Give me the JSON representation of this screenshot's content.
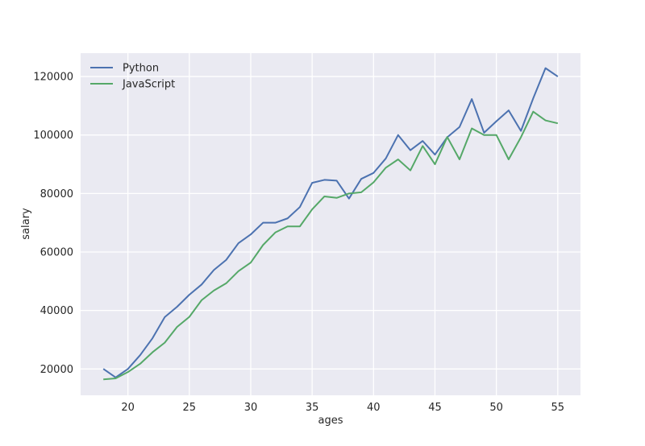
{
  "chart_data": {
    "type": "line",
    "title": "",
    "xlabel": "ages",
    "ylabel": "salary",
    "xlim": [
      16.15,
      56.85
    ],
    "ylim": [
      11000,
      128000
    ],
    "xticks": [
      20,
      25,
      30,
      35,
      40,
      45,
      50,
      55
    ],
    "yticks": [
      20000,
      40000,
      60000,
      80000,
      100000,
      120000
    ],
    "grid": true,
    "legend_position": "top-left",
    "x": [
      18,
      19,
      20,
      21,
      22,
      23,
      24,
      25,
      26,
      27,
      28,
      29,
      30,
      31,
      32,
      33,
      34,
      35,
      36,
      37,
      38,
      39,
      40,
      41,
      42,
      43,
      44,
      45,
      46,
      47,
      48,
      49,
      50,
      51,
      52,
      53,
      54,
      55
    ],
    "series": [
      {
        "name": "Python",
        "color": "#4c72b0",
        "values": [
          20046,
          17100,
          20000,
          24744,
          30500,
          37732,
          41247,
          45372,
          48876,
          53850,
          57287,
          63016,
          65998,
          70003,
          70000,
          71496,
          75370,
          83640,
          84666,
          84392,
          78254,
          85000,
          87038,
          91991,
          100000,
          94796,
          97962,
          93302,
          99240,
          102736,
          112285,
          100771,
          104708,
          108423,
          101407,
          112542,
          122870,
          120000
        ]
      },
      {
        "name": "JavaScript",
        "color": "#55a868",
        "values": [
          16446,
          16791,
          18942,
          21780,
          25704,
          29000,
          34372,
          37810,
          43515,
          46823,
          49293,
          53437,
          56373,
          62375,
          66674,
          68745,
          68746,
          74583,
          79000,
          78508,
          79996,
          80403,
          83820,
          88833,
          91660,
          87892,
          96243,
          90000,
          99313,
          91660,
          102264,
          100000,
          100000,
          91660,
          99240,
          108000,
          105000,
          104000
        ]
      }
    ]
  }
}
